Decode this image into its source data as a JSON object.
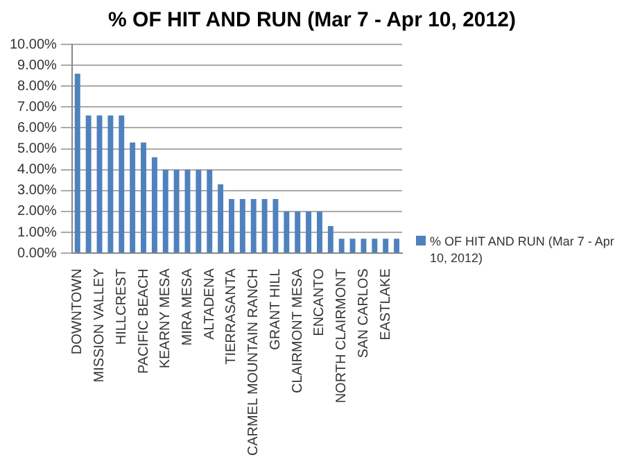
{
  "chart_data": {
    "type": "bar",
    "title": "% OF HIT AND RUN (Mar 7 - Apr 10, 2012)",
    "categories": [
      "DOWNTOWN",
      null,
      "MISSION VALLEY",
      null,
      "HILLCREST",
      null,
      "PACIFIC BEACH",
      null,
      "KEARNY MESA",
      null,
      "MIRA MESA",
      null,
      "ALTADENA",
      null,
      "TIERRASANTA",
      null,
      "CARMEL MOUNTAIN RANCH",
      null,
      "GRANT HILL",
      null,
      "CLAIRMONT MESA",
      null,
      "ENCANTO",
      null,
      "NORTH CLAIRMONT",
      null,
      "SAN CARLOS",
      null,
      "EASTLAKE",
      null
    ],
    "series": [
      {
        "name": "% OF HIT AND RUN (Mar 7 - Apr 10, 2012)",
        "color": "#4f81bd",
        "values": [
          8.6,
          6.6,
          6.6,
          6.6,
          6.6,
          5.3,
          5.3,
          4.6,
          4.0,
          4.0,
          4.0,
          4.0,
          4.0,
          3.3,
          2.6,
          2.6,
          2.6,
          2.6,
          2.6,
          2.0,
          2.0,
          2.0,
          2.0,
          1.3,
          0.7,
          0.7,
          0.7,
          0.7,
          0.7,
          0.7
        ]
      }
    ],
    "ylim": [
      0,
      10
    ],
    "yticks": [
      {
        "value": 0,
        "label": "0.00%"
      },
      {
        "value": 1,
        "label": "1.00%"
      },
      {
        "value": 2,
        "label": "2.00%"
      },
      {
        "value": 3,
        "label": "3.00%"
      },
      {
        "value": 4,
        "label": "4.00%"
      },
      {
        "value": 5,
        "label": "5.00%"
      },
      {
        "value": 6,
        "label": "6.00%"
      },
      {
        "value": 7,
        "label": "7.00%"
      },
      {
        "value": 8,
        "label": "8.00%"
      },
      {
        "value": 9,
        "label": "9.00%"
      },
      {
        "value": 10,
        "label": "10.00%"
      }
    ],
    "grid": "y",
    "legend": "right"
  }
}
